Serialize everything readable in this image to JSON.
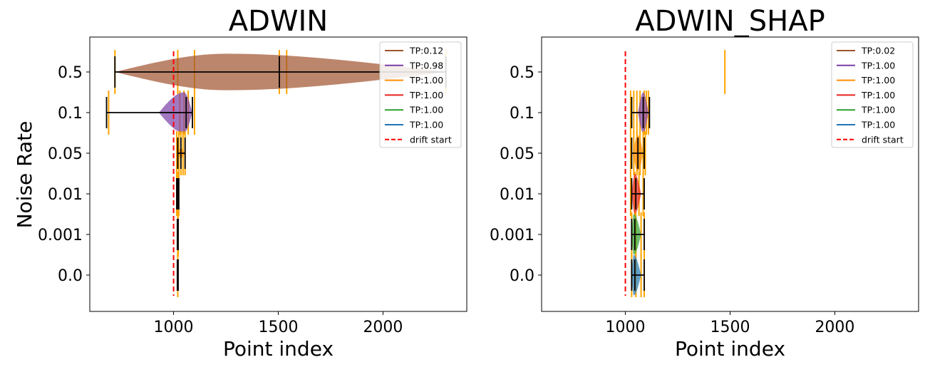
{
  "chart_data": [
    {
      "type": "violin",
      "title": "ADWIN",
      "xlabel": "Point index",
      "ylabel": "Noise Rate",
      "xlim": [
        600,
        2400
      ],
      "xticks": [
        1000,
        1500,
        2000
      ],
      "categories": [
        "0.0",
        "0.001",
        "0.01",
        "0.05",
        "0.1",
        "0.5"
      ],
      "drift_start": 1000,
      "legend_position": "upper right",
      "series": [
        {
          "category": "0.5",
          "name": "TP:0.12",
          "color": "#a0522d",
          "min": 720,
          "median": 1505,
          "max": 2300,
          "body": [
            720,
            2300
          ],
          "peak": 1250,
          "half_width": 0.45,
          "rugs": [
            720,
            1020,
            1100,
            1505,
            1540,
            2300
          ]
        },
        {
          "category": "0.1",
          "name": "TP:0.98",
          "color": "#7a3fa6",
          "min": 680,
          "median": 1060,
          "max": 1090,
          "body": [
            930,
            1090
          ],
          "peak": 1050,
          "half_width": 0.5,
          "rugs": [
            690,
            1030,
            1050,
            1070,
            1100
          ]
        },
        {
          "category": "0.05",
          "name": "TP:1.00",
          "color": "#ff8c00",
          "min": 1020,
          "median": 1035,
          "max": 1055,
          "body": [
            1020,
            1055
          ],
          "peak": 1035,
          "half_width": 0.12,
          "rugs": [
            1015,
            1025,
            1035,
            1045,
            1055
          ]
        },
        {
          "category": "0.01",
          "name": "TP:1.00",
          "color": "#e8221c",
          "min": 1015,
          "median": 1020,
          "max": 1025,
          "body": [
            1015,
            1025
          ],
          "peak": 1020,
          "half_width": 0.1,
          "rugs": [
            1015,
            1020,
            1025
          ]
        },
        {
          "category": "0.001",
          "name": "TP:1.00",
          "color": "#2ca02c",
          "min": 1018,
          "median": 1020,
          "max": 1022,
          "body": [
            1018,
            1022
          ],
          "peak": 1020,
          "half_width": 0.1,
          "rugs": [
            1020,
            1022
          ]
        },
        {
          "category": "0.0",
          "name": "TP:1.00",
          "color": "#1f77b4",
          "min": 1018,
          "median": 1020,
          "max": 1022,
          "body": [
            1018,
            1022
          ],
          "peak": 1020,
          "half_width": 0.1,
          "rugs": [
            1020
          ]
        }
      ],
      "drift_label": "drift start"
    },
    {
      "type": "violin",
      "title": "ADWIN_SHAP",
      "xlabel": "Point index",
      "ylabel": "",
      "xlim": [
        600,
        2400
      ],
      "xticks": [
        1000,
        1500,
        2000
      ],
      "categories": [
        "0.0",
        "0.001",
        "0.01",
        "0.05",
        "0.1",
        "0.5"
      ],
      "drift_start": 1000,
      "legend_position": "upper right",
      "series": [
        {
          "category": "0.5",
          "name": "TP:0.02",
          "color": "#a0522d",
          "min": null,
          "median": null,
          "max": null,
          "body": null,
          "peak": null,
          "half_width": 0,
          "rugs": [
            1475
          ]
        },
        {
          "category": "0.1",
          "name": "TP:1.00",
          "color": "#7a3fa6",
          "min": 1030,
          "median": 1085,
          "max": 1115,
          "body": [
            1060,
            1110
          ],
          "peak": 1085,
          "half_width": 0.5,
          "rugs": [
            1025,
            1040,
            1055,
            1070,
            1090,
            1100,
            1110
          ]
        },
        {
          "category": "0.05",
          "name": "TP:1.00",
          "color": "#ff8c00",
          "min": 1030,
          "median": 1060,
          "max": 1090,
          "body": [
            1035,
            1085
          ],
          "peak": 1060,
          "half_width": 0.45,
          "rugs": [
            1025,
            1040,
            1055,
            1070,
            1085,
            1095
          ]
        },
        {
          "category": "0.01",
          "name": "TP:1.00",
          "color": "#e8221c",
          "min": 1030,
          "median": 1050,
          "max": 1090,
          "body": [
            1030,
            1075
          ],
          "peak": 1045,
          "half_width": 0.5,
          "rugs": [
            1025,
            1045,
            1065,
            1085
          ]
        },
        {
          "category": "0.001",
          "name": "TP:1.00",
          "color": "#2ca02c",
          "min": 1030,
          "median": 1045,
          "max": 1090,
          "body": [
            1030,
            1075
          ],
          "peak": 1040,
          "half_width": 0.5,
          "rugs": [
            1030,
            1050,
            1075,
            1090
          ]
        },
        {
          "category": "0.0",
          "name": "TP:1.00",
          "color": "#1f77b4",
          "min": 1030,
          "median": 1045,
          "max": 1090,
          "body": [
            1030,
            1075
          ],
          "peak": 1040,
          "half_width": 0.5,
          "rugs": [
            1030,
            1050,
            1075,
            1090
          ]
        }
      ],
      "drift_label": "drift start"
    }
  ]
}
